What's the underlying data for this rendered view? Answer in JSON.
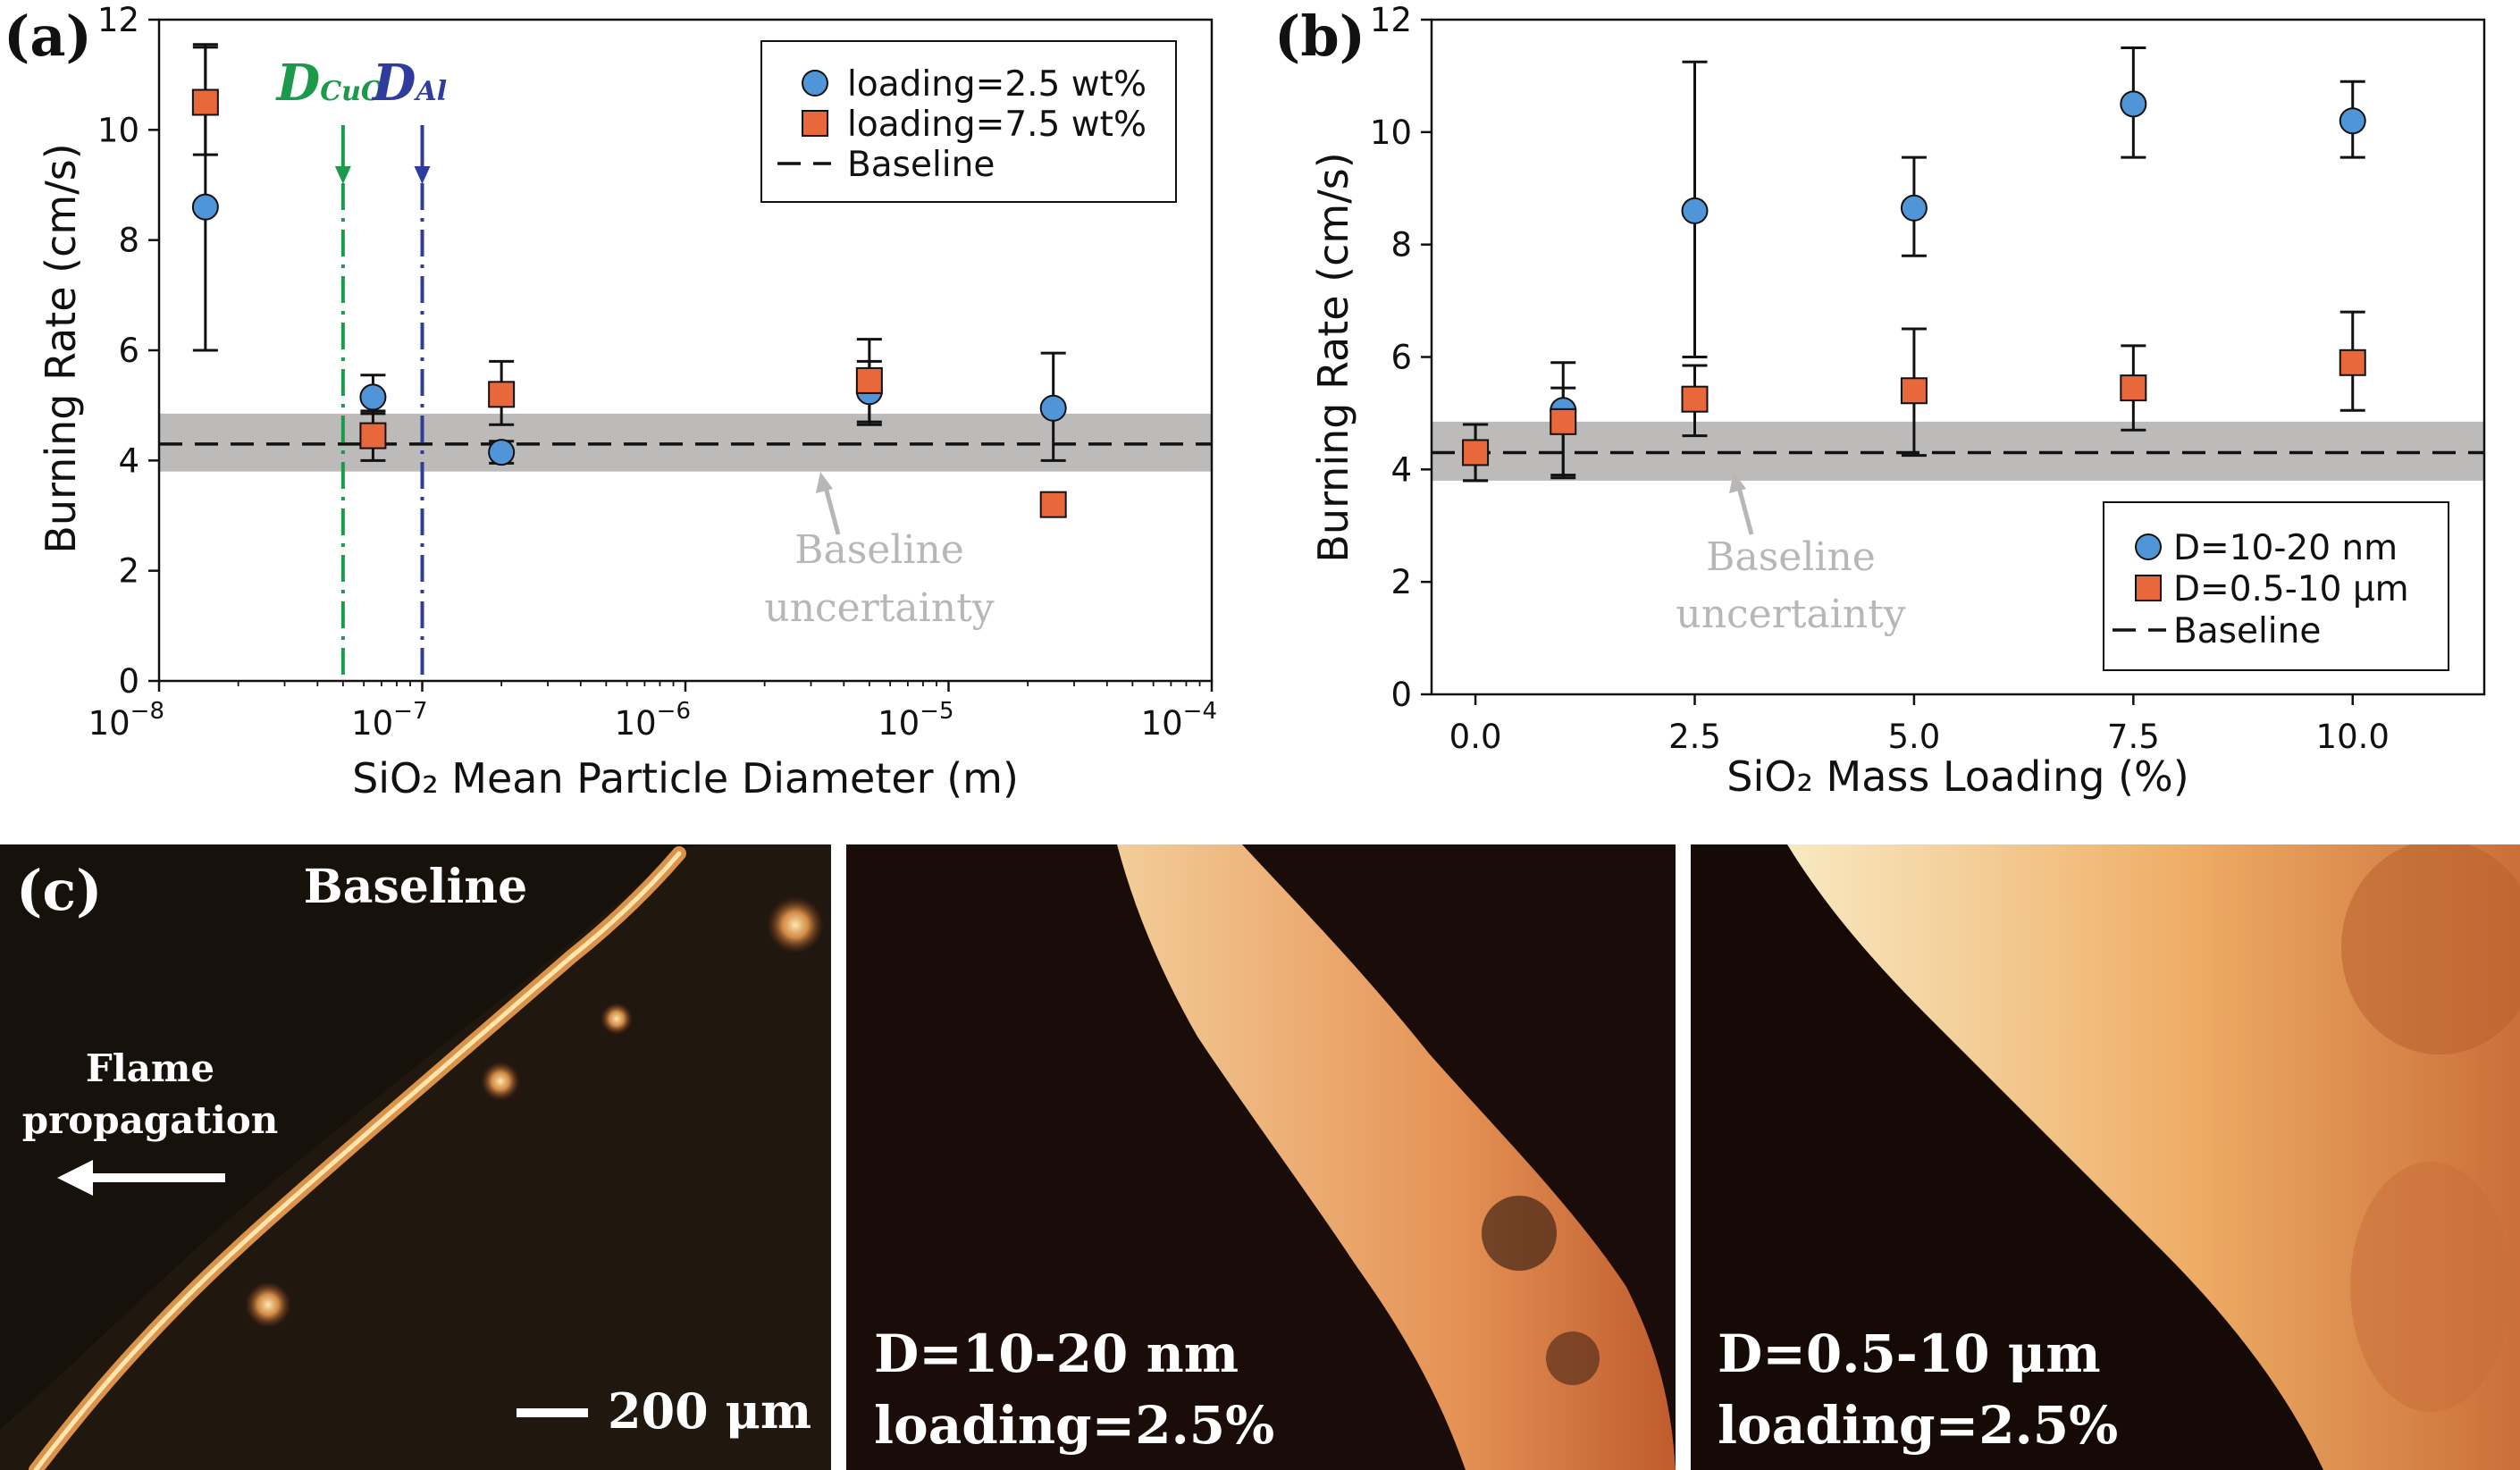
{
  "colors": {
    "series_a": "#4f95d8",
    "series_b": "#e8683c",
    "band": "#bdbaba",
    "dcuo": "#1a9a4a",
    "dal": "#2f3c9e"
  },
  "chart_data": [
    {
      "id": "a",
      "type": "scatter",
      "panel_label": "(a)",
      "xscale": "log",
      "xlabel": "SiO₂ Mean Particle Diameter (m)",
      "ylabel": "Burning Rate (cm/s)",
      "xlim": [
        1e-08,
        0.0001
      ],
      "ylim": [
        0,
        12
      ],
      "xticks": [
        1e-08,
        1e-07,
        1e-06,
        1e-05,
        0.0001
      ],
      "xtick_labels": [
        {
          "base": "10",
          "exp": "−8"
        },
        {
          "base": "10",
          "exp": "−7"
        },
        {
          "base": "10",
          "exp": "−6"
        },
        {
          "base": "10",
          "exp": "−5"
        },
        {
          "base": "10",
          "exp": "−4"
        }
      ],
      "yticks": [
        "0",
        "2",
        "4",
        "6",
        "8",
        "10",
        "12"
      ],
      "baseline": 4.3,
      "band": [
        3.8,
        4.85
      ],
      "vlines": [
        {
          "x": 5e-08,
          "label": "D",
          "sub": "CuO",
          "color": "#1a9a4a"
        },
        {
          "x": 1e-07,
          "label": "D",
          "sub": "Al",
          "color": "#2f3c9e"
        }
      ],
      "series": [
        {
          "name": "loading=2.5 wt%",
          "marker": "circle",
          "color": "#4f95d8",
          "x": [
            1.5e-08,
            6.5e-08,
            2e-07,
            5e-06,
            2.5e-05
          ],
          "y": [
            8.6,
            5.15,
            4.15,
            5.25,
            4.95
          ],
          "err": [
            [
              2.6,
              2.95
            ],
            [
              0.3,
              0.4
            ],
            [
              0.2,
              0.2
            ],
            [
              0.55,
              0.55
            ],
            [
              0.95,
              1.0
            ]
          ]
        },
        {
          "name": "loading=7.5 wt%",
          "marker": "square",
          "color": "#e8683c",
          "x": [
            1.5e-08,
            6.5e-08,
            2e-07,
            5e-06,
            2.5e-05
          ],
          "y": [
            10.5,
            4.45,
            5.2,
            5.45,
            3.2
          ],
          "err": [
            [
              0.95,
              1.0
            ],
            [
              0.45,
              0.45
            ],
            [
              0.55,
              0.6
            ],
            [
              0.8,
              0.75
            ],
            [
              0,
              0
            ]
          ]
        }
      ],
      "legend": [
        {
          "label": "loading=2.5 wt%",
          "marker": "circle"
        },
        {
          "label": "loading=7.5 wt%",
          "marker": "square"
        },
        {
          "label": "Baseline",
          "marker": "dash"
        }
      ],
      "band_annotation": [
        "Baseline",
        "uncertainty"
      ],
      "legend_position": "top-right"
    },
    {
      "id": "b",
      "type": "scatter",
      "panel_label": "(b)",
      "xscale": "linear",
      "xlabel": "SiO₂ Mass Loading (%)",
      "ylabel": "Burning Rate (cm/s)",
      "xlim": [
        -0.5,
        11.5
      ],
      "ylim": [
        0,
        12
      ],
      "xticks": [
        0.0,
        2.5,
        5.0,
        7.5,
        10.0
      ],
      "xtick_labels": [
        "0.0",
        "2.5",
        "5.0",
        "7.5",
        "10.0"
      ],
      "yticks": [
        "0",
        "2",
        "4",
        "6",
        "8",
        "10",
        "12"
      ],
      "baseline": 4.3,
      "band": [
        3.8,
        4.85
      ],
      "series": [
        {
          "name": "D=10-20 nm",
          "marker": "circle",
          "color": "#4f95d8",
          "x": [
            0,
            1,
            2.5,
            5,
            7.5,
            10
          ],
          "y": [
            4.3,
            5.05,
            8.6,
            8.65,
            10.5,
            10.2
          ],
          "err": [
            [
              0.5,
              0.5
            ],
            [
              1.2,
              0.85
            ],
            [
              2.6,
              2.65
            ],
            [
              0.85,
              0.9
            ],
            [
              0.95,
              1.0
            ],
            [
              0.65,
              0.7
            ]
          ]
        },
        {
          "name": "D=0.5-10 μm",
          "marker": "square",
          "color": "#e8683c",
          "x": [
            0,
            1,
            2.5,
            5,
            7.5,
            10
          ],
          "y": [
            4.3,
            4.85,
            5.25,
            5.4,
            5.45,
            5.9
          ],
          "err": [
            [
              0.5,
              0.5
            ],
            [
              0.95,
              0.6
            ],
            [
              0.65,
              0.6
            ],
            [
              1.15,
              1.1
            ],
            [
              0.75,
              0.75
            ],
            [
              0.85,
              0.9
            ]
          ]
        }
      ],
      "legend": [
        {
          "label": "D=10-20 nm",
          "marker": "circle"
        },
        {
          "label": "D=0.5-10 μm",
          "marker": "square"
        },
        {
          "label": "Baseline",
          "marker": "dash"
        }
      ],
      "band_annotation": [
        "Baseline",
        "uncertainty"
      ],
      "legend_position": "bottom-right"
    }
  ],
  "photos": {
    "panel_label": "(c)",
    "items": [
      {
        "title": "Baseline",
        "lines": [],
        "annotation": [
          "Flame",
          "propagation"
        ],
        "scalebar": "200 μm"
      },
      {
        "title": "",
        "lines": [
          "D=10-20 nm",
          "loading=2.5%"
        ]
      },
      {
        "title": "",
        "lines": [
          "D=0.5-10 μm",
          "loading=2.5%"
        ]
      }
    ]
  }
}
